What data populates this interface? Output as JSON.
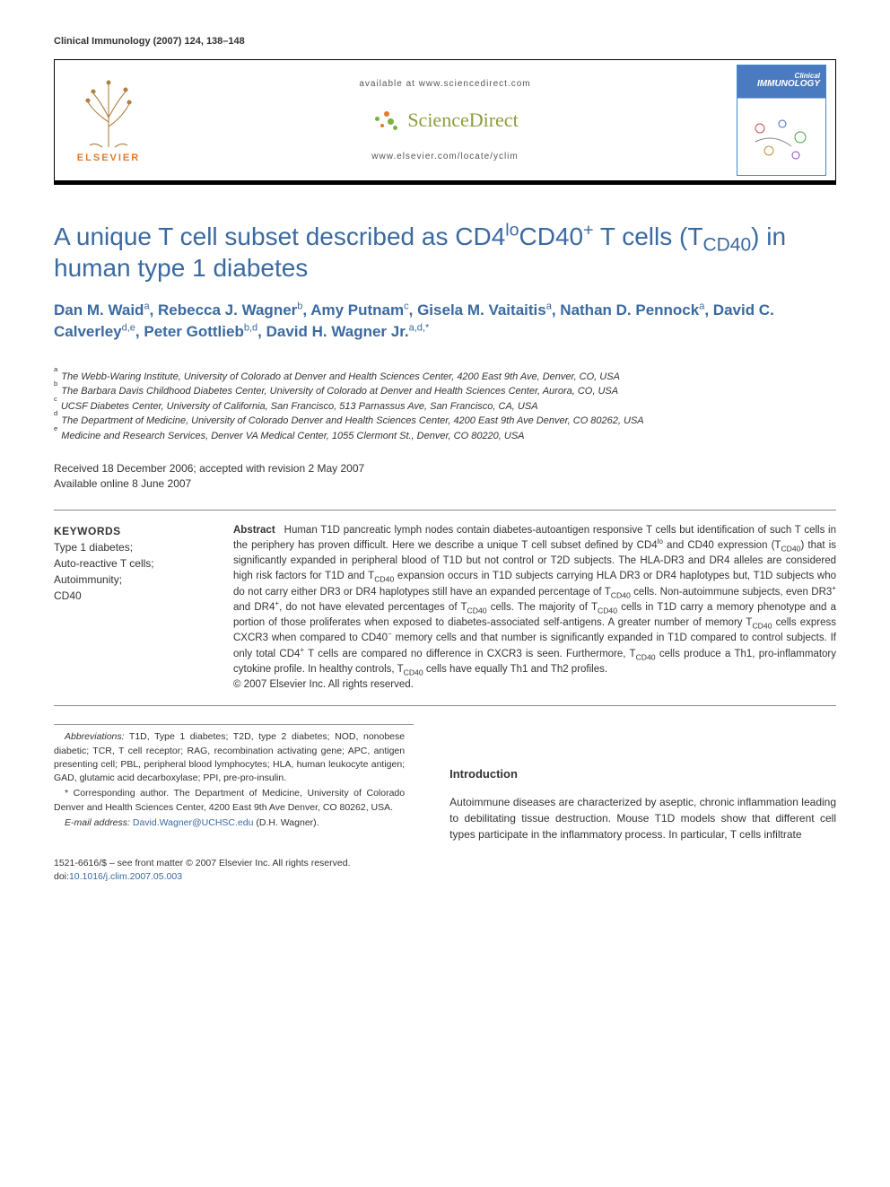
{
  "header": {
    "journal_ref": "Clinical Immunology (2007) 124, 138–148"
  },
  "banner": {
    "available_at": "available at www.sciencedirect.com",
    "sd_brand": "ScienceDirect",
    "locate": "www.elsevier.com/locate/yclim",
    "publisher": "ELSEVIER",
    "journal_title_1": "Clinical",
    "journal_title_2": "IMMUNOLOGY"
  },
  "title": "A unique T cell subset described as CD4<sup>lo</sup>CD40<sup>+</sup> T cells (T<sub>CD40</sub>) in human type 1 diabetes",
  "authors_html": "Dan M. Waid<sup>a</sup>, Rebecca J. Wagner<sup>b</sup>, Amy Putnam<sup>c</sup>, Gisela M. Vaitaitis<sup>a</sup>, Nathan D. Pennock<sup>a</sup>, David C. Calverley<sup>d,e</sup>, Peter Gottlieb<sup>b,d</sup>, David H. Wagner Jr.<sup>a,d,*</sup>",
  "affiliations": [
    {
      "marker": "a",
      "text": "The Webb-Waring Institute, University of Colorado at Denver and Health Sciences Center, 4200 East 9th Ave, Denver, CO, USA"
    },
    {
      "marker": "b",
      "text": "The Barbara Davis Childhood Diabetes Center, University of Colorado at Denver and Health Sciences Center, Aurora, CO, USA"
    },
    {
      "marker": "c",
      "text": "UCSF Diabetes Center, University of California, San Francisco, 513 Parnassus Ave, San Francisco, CA, USA"
    },
    {
      "marker": "d",
      "text": "The Department of Medicine, University of Colorado Denver and Health Sciences Center, 4200 East 9th Ave Denver, CO 80262, USA"
    },
    {
      "marker": "e",
      "text": "Medicine and Research Services, Denver VA Medical Center, 1055 Clermont St., Denver, CO 80220, USA"
    }
  ],
  "dates": {
    "received": "Received 18 December 2006; accepted with revision 2 May 2007",
    "online": "Available online 8 June 2007"
  },
  "keywords": {
    "heading": "KEYWORDS",
    "items": [
      "Type 1 diabetes;",
      "Auto-reactive T cells;",
      "Autoimmunity;",
      "CD40"
    ]
  },
  "abstract": {
    "heading": "Abstract",
    "body_html": "Human T1D pancreatic lymph nodes contain diabetes-autoantigen responsive T cells but identification of such T cells in the periphery has proven difficult. Here we describe a unique T cell subset defined by CD4<sup>lo</sup> and CD40 expression (T<sub>CD40</sub>) that is significantly expanded in peripheral blood of T1D but not control or T2D subjects. The HLA-DR3 and DR4 alleles are considered high risk factors for T1D and T<sub>CD40</sub> expansion occurs in T1D subjects carrying HLA DR3 or DR4 haplotypes but, T1D subjects who do not carry either DR3 or DR4 haplotypes still have an expanded percentage of T<sub>CD40</sub> cells. Non-autoimmune subjects, even DR3<sup>+</sup> and DR4<sup>+</sup>, do not have elevated percentages of T<sub>CD40</sub> cells. The majority of T<sub>CD40</sub> cells in T1D carry a memory phenotype and a portion of those proliferates when exposed to diabetes-associated self-antigens. A greater number of memory T<sub>CD40</sub> cells express CXCR3 when compared to CD40<sup>−</sup> memory cells and that number is significantly expanded in T1D compared to control subjects. If only total CD4<sup>+</sup> T cells are compared no difference in CXCR3 is seen. Furthermore, T<sub>CD40</sub> cells produce a Th1, pro-inflammatory cytokine profile. In healthy controls, T<sub>CD40</sub> cells have equally Th1 and Th2 profiles.",
    "copyright": "© 2007 Elsevier Inc. All rights reserved."
  },
  "footnotes": {
    "abbrev_head": "Abbreviations:",
    "abbrev_body": " T1D, Type 1 diabetes; T2D, type 2 diabetes; NOD, nonobese diabetic; TCR, T cell receptor; RAG, recombination activating gene; APC, antigen presenting cell; PBL, peripheral blood lymphocytes; HLA, human leukocyte antigen; GAD, glutamic acid decarboxylase; PPI, pre-pro-insulin.",
    "corr": "* Corresponding author. The Department of Medicine, University of Colorado Denver and Health Sciences Center, 4200 East 9th Ave Denver, CO 80262, USA.",
    "email_label": "E-mail address:",
    "email": "David.Wagner@UCHSC.edu",
    "email_tail": " (D.H. Wagner)."
  },
  "intro": {
    "heading": "Introduction",
    "body": "Autoimmune diseases are characterized by aseptic, chronic inflammation leading to debilitating tissue destruction. Mouse T1D models show that different cell types participate in the inflammatory process. In particular, T cells infiltrate"
  },
  "footer": {
    "copyright": "1521-6616/$ – see front matter © 2007 Elsevier Inc. All rights reserved.",
    "doi_label": "doi:",
    "doi": "10.1016/j.clim.2007.05.003"
  },
  "colors": {
    "link_blue": "#3b6aa0",
    "elsevier_orange": "#e37b2a",
    "sd_green": "#8f9b3e"
  }
}
